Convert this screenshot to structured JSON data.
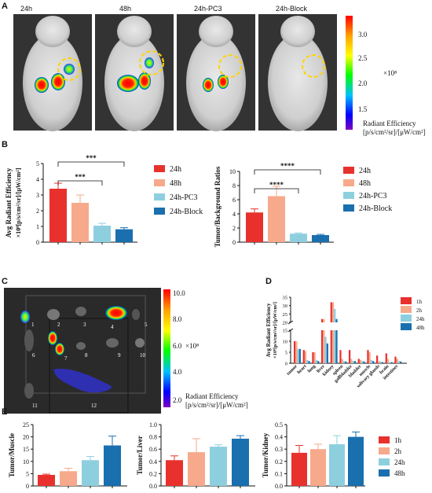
{
  "panels": {
    "A": {
      "letter": "A",
      "image_titles": [
        "24h",
        "48h",
        "24h-PC3",
        "24h-Block"
      ],
      "colorbar": {
        "ticks": [
          "3.0",
          "2.5",
          "2.0",
          "1.5"
        ],
        "exponent": "×10⁸",
        "label_line1": "Radiant Efficiency",
        "label_line2": "[p/s/cm²/sr]/[μW/cm²]",
        "gradient": [
          "#ff0000",
          "#ffa500",
          "#ffff00",
          "#00ff00",
          "#00c0ff",
          "#0000ff",
          "#8000c0"
        ]
      }
    },
    "B": {
      "letter": "B",
      "legend": [
        "24h",
        "48h",
        "24h-PC3",
        "24h-Block"
      ],
      "colors": [
        "#e8312d",
        "#f7a98b",
        "#8ecfdf",
        "#1a6fae"
      ]
    },
    "C": {
      "letter": "C",
      "organ_numbers": [
        "1",
        "2",
        "3",
        "4",
        "5",
        "6",
        "7",
        "8",
        "9",
        "10",
        "11",
        "12"
      ],
      "colorbar": {
        "ticks": [
          "10.0",
          "8.0",
          "6.0",
          "4.0",
          "2.0"
        ],
        "exponent": "×10⁸",
        "label_line1": "Radiant Efficiency",
        "label_line2": "[p/s/cm²/sr]/[μW/cm²]"
      }
    },
    "D": {
      "letter": "D",
      "legend": [
        "1h",
        "2h",
        "24h",
        "48h"
      ],
      "colors": [
        "#e8312d",
        "#f7a98b",
        "#8ecfdf",
        "#1a6fae"
      ]
    },
    "E": {
      "letter": "E",
      "legend": [
        "1h",
        "2h",
        "24h",
        "48h"
      ],
      "colors": [
        "#e8312d",
        "#f7a98b",
        "#8ecfdf",
        "#1a6fae"
      ]
    }
  },
  "chart_data": [
    {
      "id": "B1",
      "type": "bar",
      "categories": [
        "24h",
        "48h",
        "24h-PC3",
        "24h-Block"
      ],
      "values": [
        3.4,
        2.5,
        1.05,
        0.82
      ],
      "errors": [
        0.35,
        0.5,
        0.15,
        0.1
      ],
      "ylabel": "Avg Radiant Efficiency",
      "ylabel2": "×10⁸[p/s/cm²/sr]/[μW/cm²]",
      "ylim": [
        0,
        5
      ],
      "yticks": [
        "0",
        "1",
        "2",
        "3",
        "4",
        "5"
      ],
      "significance": [
        {
          "from": 0,
          "to": 3,
          "label": "***"
        },
        {
          "from": 0,
          "to": 2,
          "label": "***"
        }
      ]
    },
    {
      "id": "B2",
      "type": "bar",
      "categories": [
        "24h",
        "48h",
        "24h-PC3",
        "24h-Block"
      ],
      "values": [
        4.2,
        6.5,
        1.2,
        1.0
      ],
      "errors": [
        0.5,
        1.4,
        0.1,
        0.1
      ],
      "ylabel": "Tumor/Background Ratios",
      "ylim": [
        0,
        10
      ],
      "yticks": [
        "0",
        "2",
        "4",
        "6",
        "8",
        "10"
      ],
      "significance": [
        {
          "from": 0,
          "to": 3,
          "label": "****"
        },
        {
          "from": 0,
          "to": 2,
          "label": "****"
        }
      ]
    },
    {
      "id": "D",
      "type": "bar",
      "categories": [
        "tumor",
        "heart",
        "lung",
        "liver",
        "kidney",
        "spleen",
        "gallbladder",
        "bladder",
        "muscle",
        "salivary glands",
        "brain",
        "intestines"
      ],
      "series": [
        {
          "name": "1h",
          "values": [
            10,
            6,
            5,
            22,
            32,
            6,
            6,
            2,
            6,
            3.5,
            4.5,
            3
          ]
        },
        {
          "name": "2h",
          "values": [
            10,
            5.5,
            5,
            22,
            32,
            2,
            2,
            1.5,
            5,
            1,
            2,
            2
          ]
        },
        {
          "name": "24h",
          "values": [
            6.5,
            1.5,
            1.5,
            12,
            28,
            1,
            1,
            1,
            1.5,
            0.8,
            0.5,
            1
          ]
        },
        {
          "name": "48h",
          "values": [
            6.5,
            1,
            1,
            9,
            22,
            0.8,
            1,
            0.8,
            1,
            0.5,
            0.5,
            0.8
          ]
        }
      ],
      "ylabel": "Avg Radiant Efficiency",
      "ylabel2": "×10⁸[p/s/cm²/sr]/[μW/cm²]",
      "yticks_low": [
        "0",
        "5",
        "10",
        "15"
      ],
      "yticks_high": [
        "20",
        "25",
        "30",
        "35"
      ],
      "ylim": [
        0,
        35
      ]
    },
    {
      "id": "E1",
      "type": "bar",
      "categories": [
        "1h",
        "2h",
        "24h",
        "48h"
      ],
      "values": [
        4.5,
        6,
        10.5,
        16.5
      ],
      "errors": [
        0.3,
        1.2,
        1.5,
        3.8
      ],
      "ylabel": "Tumor/Muscle",
      "ylim": [
        0,
        25
      ],
      "yticks": [
        "0",
        "5",
        "10",
        "15",
        "20",
        "25"
      ]
    },
    {
      "id": "E2",
      "type": "bar",
      "categories": [
        "1h",
        "2h",
        "24h",
        "48h"
      ],
      "values": [
        0.42,
        0.55,
        0.64,
        0.77
      ],
      "errors": [
        0.07,
        0.22,
        0.03,
        0.05
      ],
      "ylabel": "Tumor/Liver",
      "ylim": [
        0,
        1.0
      ],
      "yticks": [
        "0.0",
        "0.2",
        "0.4",
        "0.6",
        "0.8",
        "1.0"
      ]
    },
    {
      "id": "E3",
      "type": "bar",
      "categories": [
        "1h",
        "2h",
        "24h",
        "48h"
      ],
      "values": [
        0.27,
        0.3,
        0.34,
        0.4
      ],
      "errors": [
        0.06,
        0.04,
        0.07,
        0.04
      ],
      "ylabel": "Tumor/Kidney",
      "ylim": [
        0,
        0.5
      ],
      "yticks": [
        "0.0",
        "0.1",
        "0.2",
        "0.3",
        "0.4",
        "0.5"
      ]
    }
  ]
}
